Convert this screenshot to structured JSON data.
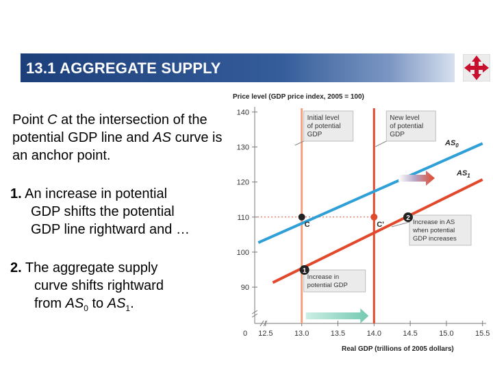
{
  "slide": {
    "title": "13.1  AGGREGATE SUPPLY",
    "nav_icon": "four-arrows-navigation-icon",
    "colors": {
      "title_bar": "#1c3f7a",
      "as0": "#2f9fd8",
      "as1": "#e2482b",
      "lrasO": "#f4a07d",
      "lrasN": "#e2482b",
      "arrow_green": "#8fd4c2"
    }
  },
  "text": {
    "p1_a": "Point ",
    "p1_c": "C",
    "p1_b": " at the intersection of the potential GDP line and ",
    "p1_as": "AS",
    "p1_d": " curve is an anchor point.",
    "p2_num": "1.",
    "p2_line1": "  An increase in potential",
    "p2_line2": "GDP shifts the potential",
    "p2_line3": "GDP line rightward and …",
    "p3_num": "2.",
    "p3_line1": " The aggregate supply",
    "p3_line2": "curve shifts rightward",
    "p3_line3_a": "from ",
    "p3_as0": "AS",
    "p3_sub0": "0",
    "p3_to": " to ",
    "p3_as1": "AS",
    "p3_sub1": "1",
    "p3_end": "."
  },
  "chart_data": {
    "type": "line",
    "ylabel": "Price level (GDP price index, 2005 = 100)",
    "xlabel": "Real GDP (trillions of 2005 dollars)",
    "y_ticks": [
      90,
      100,
      110,
      120,
      130,
      140
    ],
    "x_ticks": [
      "0",
      "12.5",
      "13.0",
      "13.5",
      "14.0",
      "14.5",
      "15.0",
      "15.5"
    ],
    "x_tick_values": [
      12.5,
      13.0,
      13.5,
      14.0,
      14.5,
      15.0,
      15.5
    ],
    "xlim": [
      12.35,
      15.55
    ],
    "ylim": [
      82,
      143
    ],
    "series": [
      {
        "name": "AS",
        "sub": "0",
        "points": [
          [
            12.4,
            102.7
          ],
          [
            15.5,
            131.0
          ]
        ]
      },
      {
        "name": "AS",
        "sub": "1",
        "points": [
          [
            12.6,
            91.3
          ],
          [
            15.5,
            120.7
          ]
        ]
      }
    ],
    "potential_gdp": {
      "initial": 13.0,
      "new": 14.0
    },
    "points": [
      {
        "label": "C",
        "x": 13.0,
        "y": 110
      },
      {
        "label": "C'",
        "x": 14.0,
        "y": 110
      }
    ],
    "annotations": {
      "initial_box": [
        "Initial level",
        "of potential",
        "GDP"
      ],
      "new_box": [
        "New level",
        "of potential",
        "GDP"
      ],
      "increase_as": [
        "Increase in AS",
        "when potential",
        "GDP increases"
      ],
      "increase_pgdp": [
        "Increase in",
        "potential GDP"
      ],
      "step1": "1",
      "step2": "2"
    }
  }
}
